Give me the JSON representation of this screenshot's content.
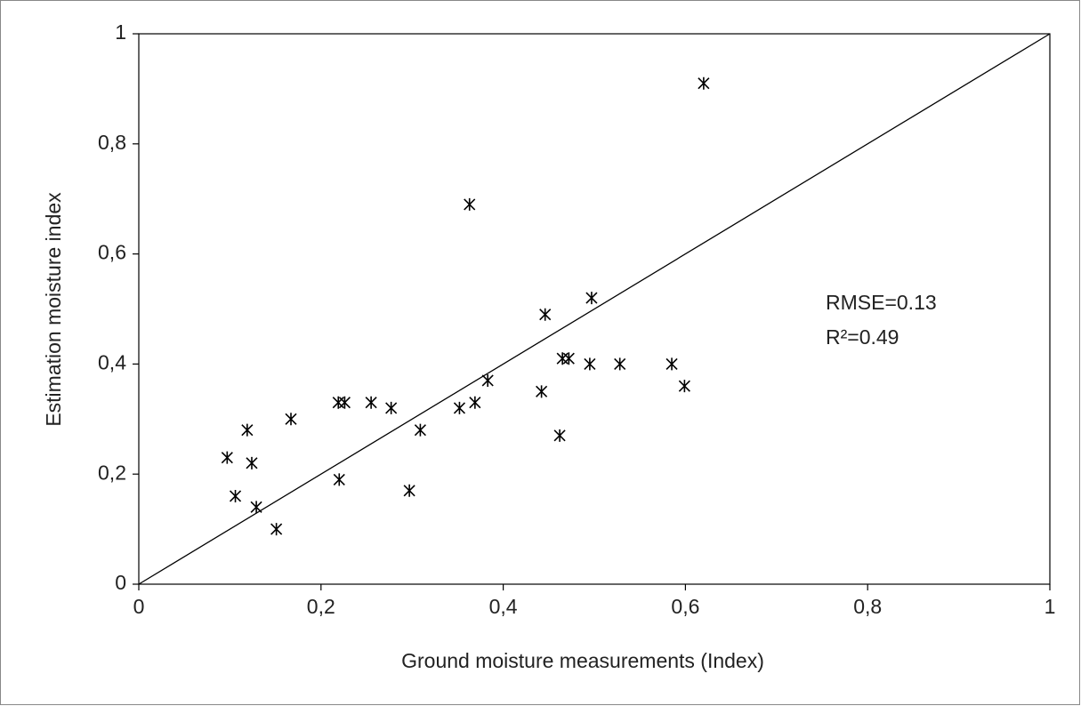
{
  "chart_data": {
    "type": "scatter",
    "x_label": "Ground moisture measurements (Index)",
    "y_label": "Estimation moisture index",
    "annotations": [
      "RMSE=0.13",
      "R²=0.49"
    ],
    "color": "#000000",
    "xlim": [
      0,
      1
    ],
    "ylim": [
      0,
      1
    ],
    "xticks": [
      0,
      {
        "value": 0.2,
        "label": "0,2"
      },
      {
        "value": 0.4,
        "label": "0,4"
      },
      {
        "value": 0.6,
        "label": "0,6"
      },
      {
        "value": 0.8,
        "label": "0,8"
      },
      1
    ],
    "yticks": [
      0,
      {
        "value": 0.2,
        "label": "0,2"
      },
      {
        "value": 0.4,
        "label": "0,4"
      },
      {
        "value": 0.6,
        "label": "0,6"
      },
      {
        "value": 0.8,
        "label": "0,8"
      },
      1
    ],
    "x": [
      0.62,
      0.363,
      0.497,
      0.446,
      0.383,
      0.465,
      0.472,
      0.495,
      0.528,
      0.585,
      0.599,
      0.442,
      0.462,
      0.369,
      0.352,
      0.309,
      0.297,
      0.277,
      0.255,
      0.226,
      0.219,
      0.22,
      0.167,
      0.151,
      0.129,
      0.124,
      0.119,
      0.106,
      0.097
    ],
    "values": [
      0.91,
      0.69,
      0.52,
      0.49,
      0.37,
      0.41,
      0.41,
      0.4,
      0.4,
      0.4,
      0.36,
      0.35,
      0.27,
      0.33,
      0.32,
      0.28,
      0.17,
      0.32,
      0.33,
      0.33,
      0.33,
      0.19,
      0.3,
      0.1,
      0.14,
      0.22,
      0.28,
      0.16,
      0.23
    ]
  }
}
